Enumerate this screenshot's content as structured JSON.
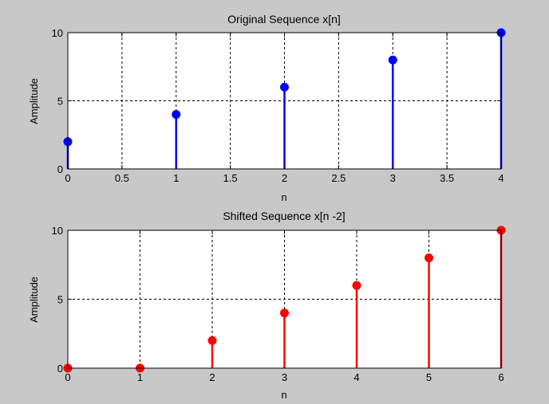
{
  "chart_data": [
    {
      "type": "stem",
      "title": "Original Sequence x[n]",
      "xlabel": "n",
      "ylabel": "Amplitude",
      "xlim": [
        0,
        4
      ],
      "ylim": [
        0,
        10
      ],
      "xticks": [
        "0",
        "0.5",
        "1",
        "1.5",
        "2",
        "2.5",
        "3",
        "3.5",
        "4"
      ],
      "yticks": [
        "0",
        "5",
        "10"
      ],
      "grid": true,
      "color": "#0000ff",
      "x": [
        0,
        1,
        2,
        3,
        4
      ],
      "y": [
        2,
        4,
        6,
        8,
        10
      ]
    },
    {
      "type": "stem",
      "title": "Shifted Sequence x[n -2]",
      "xlabel": "n",
      "ylabel": "Amplitude",
      "xlim": [
        0,
        6
      ],
      "ylim": [
        0,
        10
      ],
      "xticks": [
        "0",
        "1",
        "2",
        "3",
        "4",
        "5",
        "6"
      ],
      "yticks": [
        "0",
        "5",
        "10"
      ],
      "grid": true,
      "color": "#ff0000",
      "x": [
        0,
        1,
        2,
        3,
        4,
        5,
        6
      ],
      "y": [
        0,
        0,
        2,
        4,
        6,
        8,
        10
      ]
    }
  ]
}
